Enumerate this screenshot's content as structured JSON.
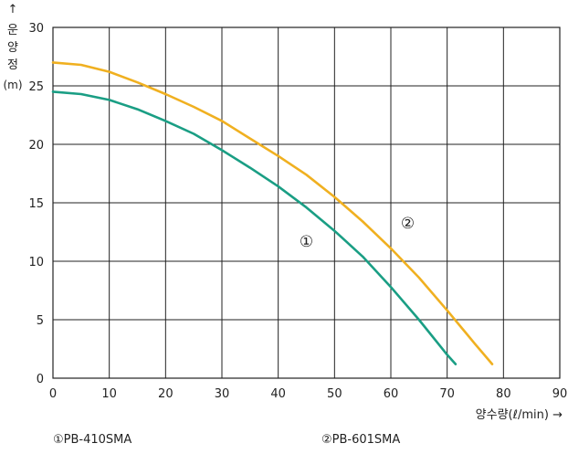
{
  "chart_data": {
    "type": "line",
    "ylabel": "↑\n운\n양\n정\n(m)",
    "xlabel": "양수량(ℓ/min) →",
    "xlim": [
      0,
      90
    ],
    "ylim": [
      0,
      30
    ],
    "x_ticks": [
      0,
      10,
      20,
      30,
      40,
      50,
      60,
      70,
      80,
      90
    ],
    "y_ticks": [
      0,
      5,
      10,
      15,
      20,
      25,
      30
    ],
    "grid": true,
    "series": [
      {
        "name": "①PB-410SMA",
        "marker": "①",
        "color": "#1a9e84",
        "x": [
          0,
          5,
          10,
          15,
          20,
          25,
          30,
          35,
          40,
          45,
          50,
          55,
          60,
          65,
          70,
          71.5
        ],
        "y": [
          24.5,
          24.3,
          23.8,
          23.0,
          22.0,
          20.9,
          19.5,
          18.0,
          16.4,
          14.6,
          12.6,
          10.4,
          7.8,
          5.0,
          2.0,
          1.2
        ]
      },
      {
        "name": "②PB-601SMA",
        "marker": "②",
        "color": "#f0b020",
        "x": [
          0,
          5,
          10,
          15,
          20,
          25,
          30,
          35,
          40,
          45,
          50,
          55,
          60,
          65,
          70,
          75,
          78
        ],
        "y": [
          27.0,
          26.8,
          26.2,
          25.3,
          24.3,
          23.2,
          22.0,
          20.5,
          19.0,
          17.4,
          15.5,
          13.4,
          11.1,
          8.6,
          5.8,
          2.9,
          1.2
        ]
      }
    ],
    "annotations": [
      {
        "text": "①",
        "x": 45,
        "y": 11.7
      },
      {
        "text": "②",
        "x": 63,
        "y": 13.3
      }
    ],
    "legend_position": "bottom"
  }
}
